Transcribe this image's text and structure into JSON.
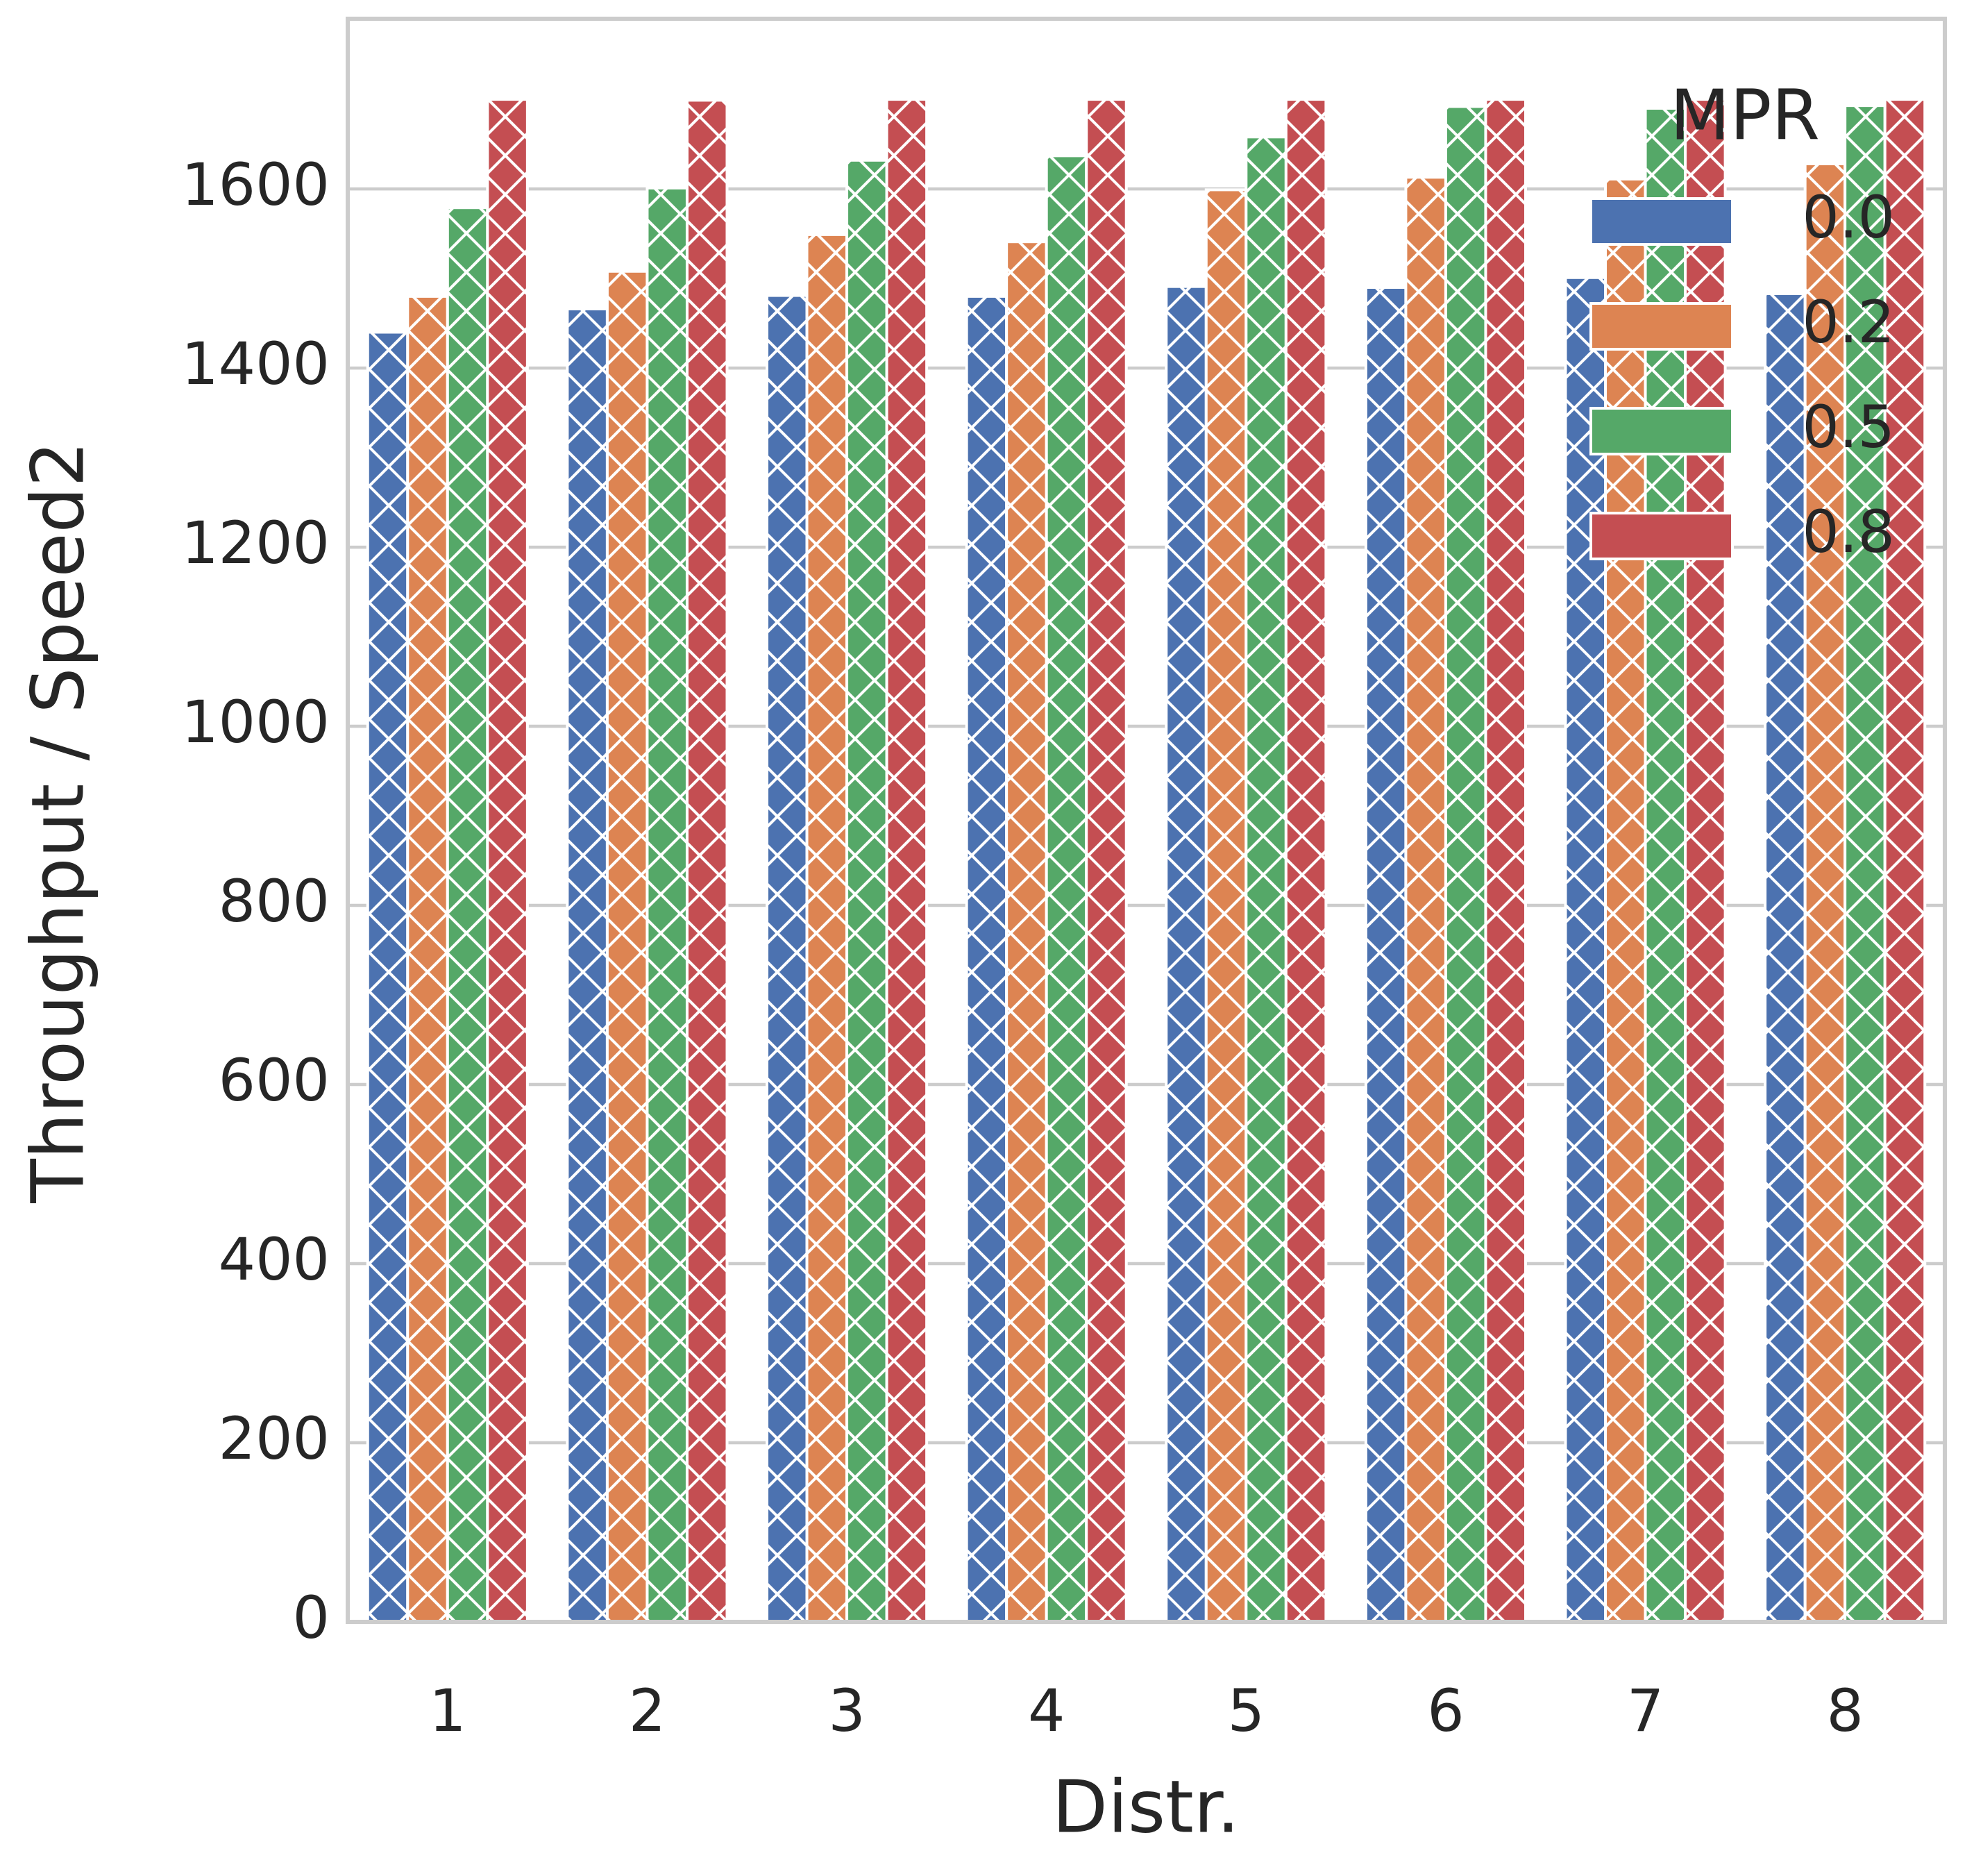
{
  "chart_data": {
    "type": "bar",
    "xlabel": "Distr.",
    "ylabel": "Throughput / Speed2",
    "categories": [
      "1",
      "2",
      "3",
      "4",
      "5",
      "6",
      "7",
      "8"
    ],
    "series": [
      {
        "name": "0.0",
        "color": "#4c72b0",
        "values": [
          1440,
          1466,
          1481,
          1480,
          1491,
          1490,
          1501,
          1483
        ]
      },
      {
        "name": "0.2",
        "color": "#dd8452",
        "values": [
          1480,
          1508,
          1549,
          1541,
          1599,
          1613,
          1611,
          1628
        ]
      },
      {
        "name": "0.5",
        "color": "#55a868",
        "values": [
          1579,
          1601,
          1632,
          1637,
          1658,
          1692,
          1690,
          1693
        ]
      },
      {
        "name": "0.8",
        "color": "#c44e52",
        "values": [
          1700,
          1699,
          1700,
          1700,
          1700,
          1700,
          1700,
          1700
        ]
      }
    ],
    "legend_title": "MPR",
    "legend": "upper right",
    "ylim": [
      0,
      1790
    ],
    "yticks": [
      0,
      200,
      400,
      600,
      800,
      1000,
      1200,
      1400,
      1600
    ],
    "grid": true,
    "hatch": "x"
  }
}
